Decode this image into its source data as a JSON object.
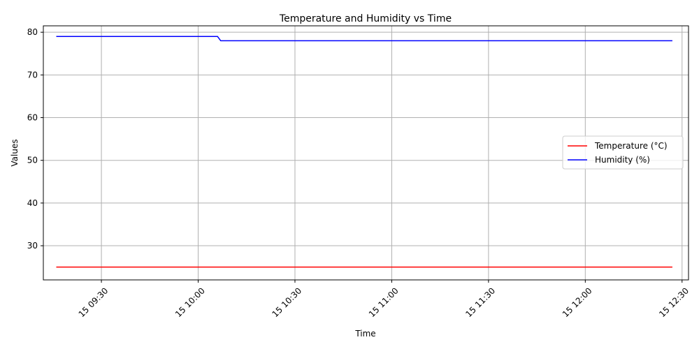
{
  "chart_data": {
    "type": "line",
    "title": "Temperature and Humidity vs Time",
    "xlabel": "Time",
    "ylabel": "Values",
    "xlim": [
      "2024-01-15T09:12",
      "2024-01-15T12:32"
    ],
    "ylim": [
      22,
      81.5
    ],
    "grid": true,
    "legend_position": "center-right",
    "x_ticks": [
      {
        "t": "2024-01-15T09:30",
        "label": "15 09:30"
      },
      {
        "t": "2024-01-15T10:00",
        "label": "15 10:00"
      },
      {
        "t": "2024-01-15T10:30",
        "label": "15 10:30"
      },
      {
        "t": "2024-01-15T11:00",
        "label": "15 11:00"
      },
      {
        "t": "2024-01-15T11:30",
        "label": "15 11:30"
      },
      {
        "t": "2024-01-15T12:00",
        "label": "15 12:00"
      },
      {
        "t": "2024-01-15T12:30",
        "label": "15 12:30"
      }
    ],
    "y_ticks": [
      30,
      40,
      50,
      60,
      70,
      80
    ],
    "series": [
      {
        "name": "Temperature (°C)",
        "color": "#ff0000",
        "points": [
          {
            "t": "2024-01-15T09:16",
            "v": 25
          },
          {
            "t": "2024-01-15T12:27",
            "v": 25
          }
        ]
      },
      {
        "name": "Humidity (%)",
        "color": "#0000ff",
        "points": [
          {
            "t": "2024-01-15T09:16",
            "v": 79
          },
          {
            "t": "2024-01-15T10:06",
            "v": 79
          },
          {
            "t": "2024-01-15T10:07",
            "v": 78
          },
          {
            "t": "2024-01-15T12:27",
            "v": 78
          }
        ]
      }
    ]
  }
}
